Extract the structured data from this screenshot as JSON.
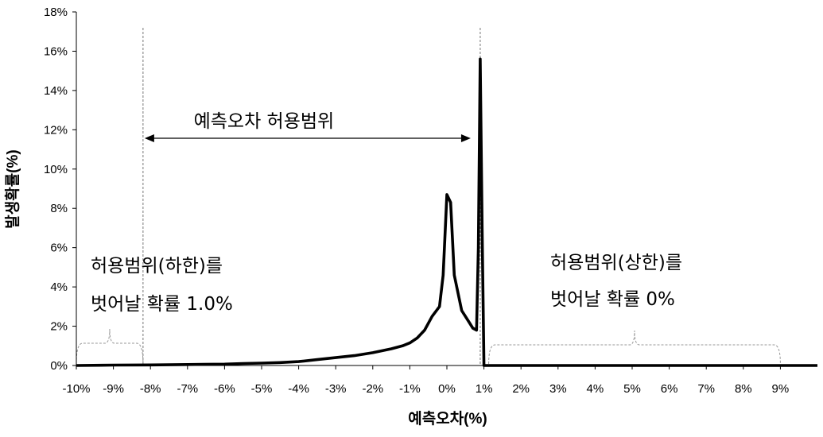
{
  "chart_data": {
    "type": "line",
    "xlabel": "예측오차(%)",
    "ylabel": "발생확률(%)",
    "xlim": [
      -10,
      10
    ],
    "ylim": [
      0,
      18
    ],
    "x_ticks": [
      "-10%",
      "-9%",
      "-8%",
      "-7%",
      "-6%",
      "-5%",
      "-4%",
      "-3%",
      "-2%",
      "-1%",
      "0%",
      "1%",
      "2%",
      "3%",
      "4%",
      "5%",
      "6%",
      "7%",
      "8%",
      "9%"
    ],
    "y_ticks": [
      "0%",
      "2%",
      "4%",
      "6%",
      "8%",
      "10%",
      "12%",
      "14%",
      "16%",
      "18%"
    ],
    "grid": false,
    "line_color": "#000000",
    "series": [
      {
        "x": [
          -10,
          -9,
          -8,
          -7,
          -6,
          -5.5,
          -5,
          -4.5,
          -4,
          -3.5,
          -3,
          -2.5,
          -2,
          -1.5,
          -1.2,
          -1,
          -0.8,
          -0.6,
          -0.4,
          -0.2,
          -0.1,
          0,
          0.1,
          0.2,
          0.4,
          0.6,
          0.7,
          0.8,
          0.85,
          0.9,
          0.95,
          1.0,
          1.2,
          2,
          3,
          4,
          5,
          6,
          7,
          8,
          9,
          10
        ],
        "y": [
          0,
          0.02,
          0.03,
          0.05,
          0.07,
          0.1,
          0.12,
          0.15,
          0.2,
          0.3,
          0.4,
          0.5,
          0.65,
          0.85,
          1.0,
          1.15,
          1.4,
          1.8,
          2.5,
          3.0,
          4.6,
          8.7,
          8.3,
          4.6,
          2.8,
          2.2,
          1.9,
          1.8,
          6.0,
          15.6,
          7.0,
          0,
          0,
          0,
          0,
          0,
          0,
          0,
          0,
          0,
          0,
          0
        ]
      }
    ],
    "annotations": {
      "range_label": "예측오차 허용범위",
      "range_from": -8.2,
      "range_to": 0.9,
      "lower_label_line1": "허용범위(하한)를",
      "lower_label_line2": "벗어날 확률 1.0%",
      "upper_label_line1": "허용범위(상한)를",
      "upper_label_line2": "벗어날 확률 0%",
      "lower_brace": [
        -10,
        -8.2
      ],
      "upper_brace": [
        1.0,
        9.0
      ]
    }
  }
}
